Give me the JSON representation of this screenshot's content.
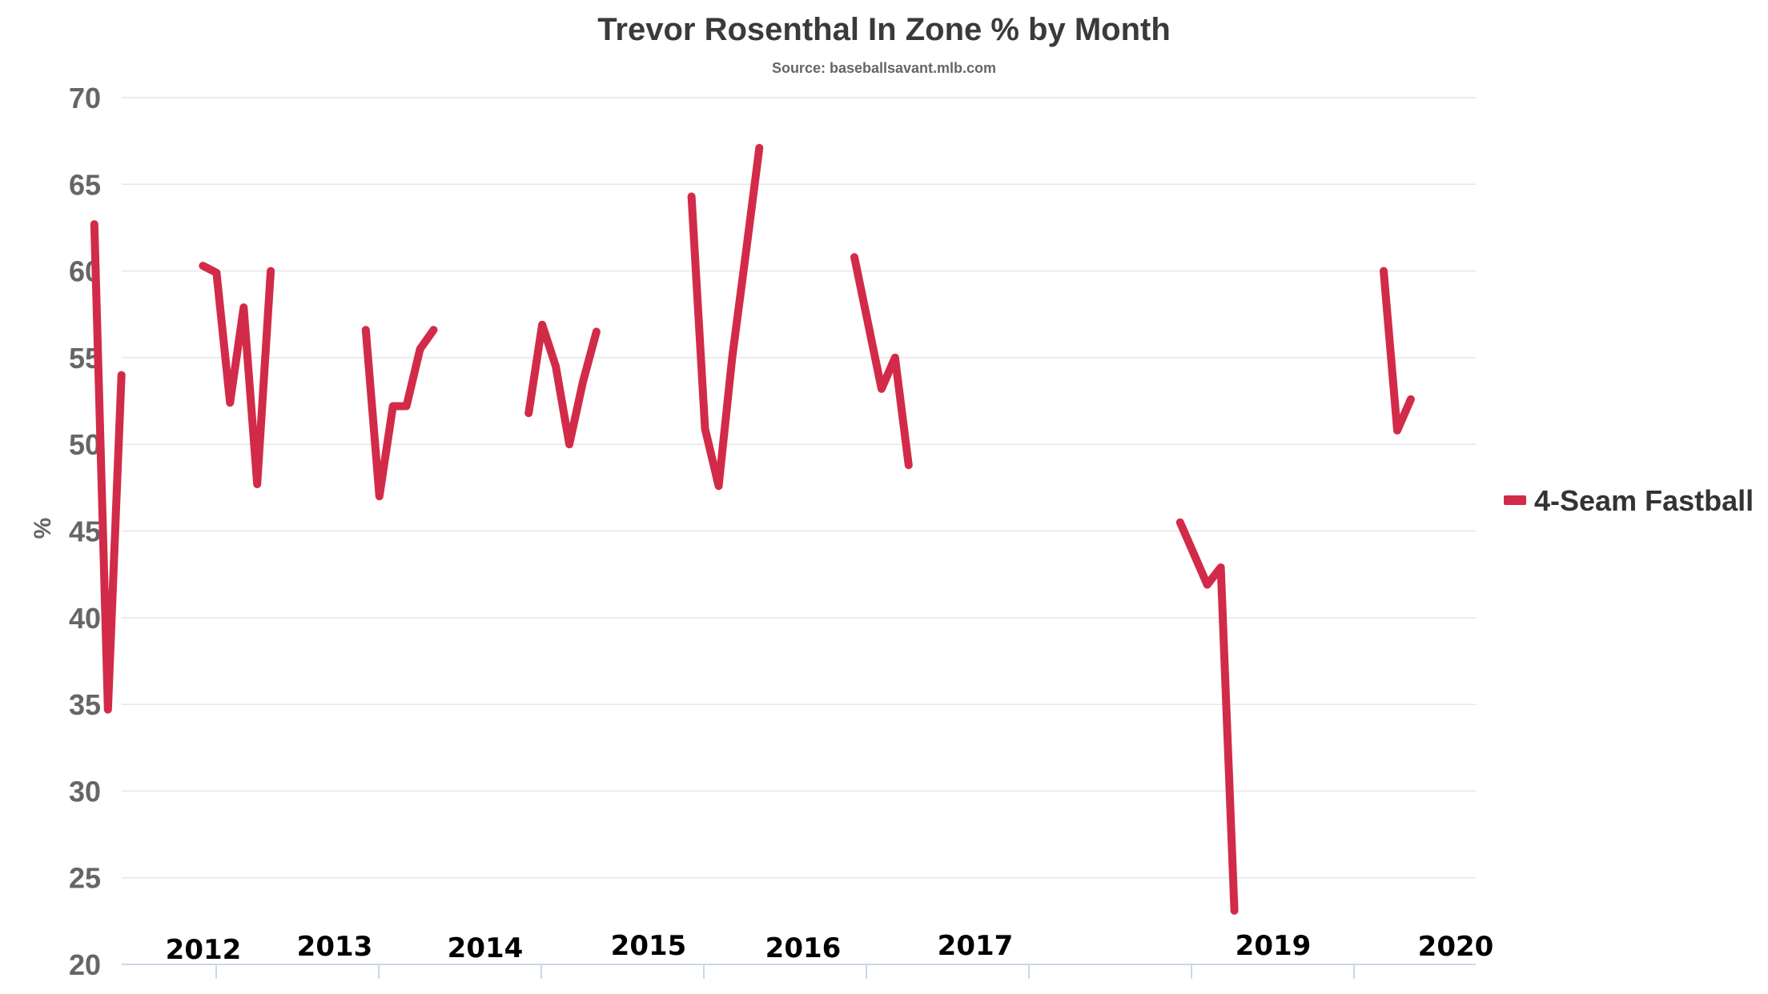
{
  "chart_data": {
    "type": "line",
    "title": "Trevor Rosenthal In Zone % by Month",
    "subtitle": "Source: baseballsavant.mlb.com",
    "ylabel": "%",
    "xlabel": "",
    "ylim": [
      20,
      70
    ],
    "yticks": [
      20,
      25,
      30,
      35,
      40,
      45,
      50,
      55,
      60,
      65,
      70
    ],
    "grid": true,
    "legend_position": "right",
    "x_labels": [
      "2012",
      "2013",
      "2014",
      "2015",
      "2016",
      "2017",
      "2019",
      "2020"
    ],
    "series": [
      {
        "name": "4-Seam Fastball",
        "color": "#d22b49",
        "segments": [
          [
            {
              "x": "2012-08",
              "y": 62.7
            },
            {
              "x": "2012-09",
              "y": 34.7
            },
            {
              "x": "2012-10",
              "y": 54.0
            }
          ],
          [
            {
              "x": "2013-04",
              "y": 60.3
            },
            {
              "x": "2013-05",
              "y": 59.9
            },
            {
              "x": "2013-06",
              "y": 52.4
            },
            {
              "x": "2013-07",
              "y": 57.9
            },
            {
              "x": "2013-08",
              "y": 47.7
            },
            {
              "x": "2013-09",
              "y": 60.0
            }
          ],
          [
            {
              "x": "2014-04",
              "y": 56.6
            },
            {
              "x": "2014-05",
              "y": 47.0
            },
            {
              "x": "2014-06",
              "y": 52.2
            },
            {
              "x": "2014-07",
              "y": 52.2
            },
            {
              "x": "2014-08",
              "y": 55.5
            },
            {
              "x": "2014-09",
              "y": 56.6
            }
          ],
          [
            {
              "x": "2015-04",
              "y": 51.8
            },
            {
              "x": "2015-05",
              "y": 56.9
            },
            {
              "x": "2015-06",
              "y": 54.5
            },
            {
              "x": "2015-07",
              "y": 50.0
            },
            {
              "x": "2015-08",
              "y": 53.6
            },
            {
              "x": "2015-09",
              "y": 56.5
            }
          ],
          [
            {
              "x": "2016-04",
              "y": 64.3
            },
            {
              "x": "2016-05",
              "y": 50.9
            },
            {
              "x": "2016-06",
              "y": 47.6
            },
            {
              "x": "2016-07",
              "y": 55.0
            },
            {
              "x": "2016-08",
              "y": 61.0
            },
            {
              "x": "2016-09",
              "y": 67.1
            }
          ],
          [
            {
              "x": "2017-04",
              "y": 60.8
            },
            {
              "x": "2017-05",
              "y": 57.0
            },
            {
              "x": "2017-06",
              "y": 53.2
            },
            {
              "x": "2017-07",
              "y": 55.0
            },
            {
              "x": "2017-08",
              "y": 48.8
            }
          ],
          [
            {
              "x": "2019-04",
              "y": 45.5
            },
            {
              "x": "2019-05",
              "y": 43.7
            },
            {
              "x": "2019-06",
              "y": 41.9
            },
            {
              "x": "2019-07",
              "y": 42.9
            },
            {
              "x": "2019-08",
              "y": 23.1
            }
          ],
          [
            {
              "x": "2020-07",
              "y": 60.0
            },
            {
              "x": "2020-08",
              "y": 50.8
            },
            {
              "x": "2020-09",
              "y": 52.6
            }
          ]
        ]
      }
    ]
  }
}
